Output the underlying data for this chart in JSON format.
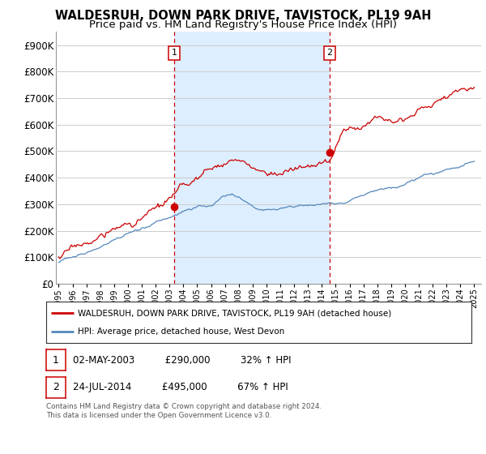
{
  "title": "WALDESRUH, DOWN PARK DRIVE, TAVISTOCK, PL19 9AH",
  "subtitle": "Price paid vs. HM Land Registry's House Price Index (HPI)",
  "ylim": [
    0,
    950000
  ],
  "yticks": [
    0,
    100000,
    200000,
    300000,
    400000,
    500000,
    600000,
    700000,
    800000,
    900000
  ],
  "ytick_labels": [
    "£0",
    "£100K",
    "£200K",
    "£300K",
    "£400K",
    "£500K",
    "£600K",
    "£700K",
    "£800K",
    "£900K"
  ],
  "sale1_date": 2003.35,
  "sale1_price": 290000,
  "sale1_label": "1",
  "sale1_text": "02-MAY-2003",
  "sale1_amount": "£290,000",
  "sale1_pct": "32% ↑ HPI",
  "sale2_date": 2014.55,
  "sale2_price": 495000,
  "sale2_label": "2",
  "sale2_text": "24-JUL-2014",
  "sale2_amount": "£495,000",
  "sale2_pct": "67% ↑ HPI",
  "red_color": "#cc0000",
  "blue_color": "#5588bb",
  "shade_color": "#ddeeff",
  "background": "#ffffff",
  "grid_color": "#cccccc",
  "legend_line1": "WALDESRUH, DOWN PARK DRIVE, TAVISTOCK, PL19 9AH (detached house)",
  "legend_line2": "HPI: Average price, detached house, West Devon",
  "footnote1": "Contains HM Land Registry data © Crown copyright and database right 2024.",
  "footnote2": "This data is licensed under the Open Government Licence v3.0.",
  "xlim_left": 1994.8,
  "xlim_right": 2025.5
}
